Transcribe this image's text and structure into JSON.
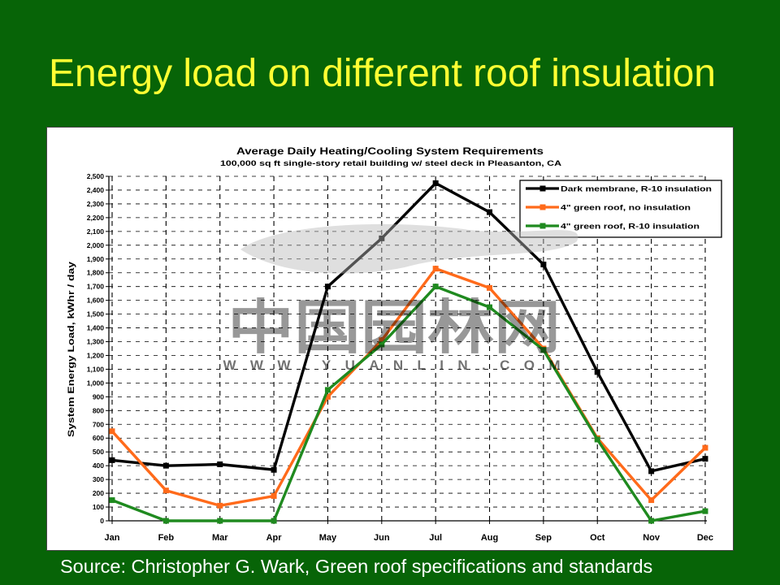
{
  "slide": {
    "title": "Energy load on different roof insulation",
    "source": "Source: Christopher G. Wark, Green roof specifications and standards",
    "background_color": "#076407",
    "title_color": "#ffff33",
    "source_color": "#ffffff"
  },
  "watermark": {
    "chinese": "中国园林网",
    "url": "WWW.YUANLIN.COM"
  },
  "chart_data": {
    "type": "line",
    "title": "Average Daily Heating/Cooling System Requirements",
    "subtitle": "100,000 sq ft single-story retail building w/ steel deck in Pleasanton, CA",
    "xlabel": "",
    "ylabel": "System Energy Load, kWhr / day",
    "categories": [
      "Jan",
      "Feb",
      "Mar",
      "Apr",
      "May",
      "Jun",
      "Jul",
      "Aug",
      "Sep",
      "Oct",
      "Nov",
      "Dec"
    ],
    "ylim": [
      0,
      2500
    ],
    "yticks": [
      "0",
      "100",
      "200",
      "300",
      "400",
      "500",
      "600",
      "700",
      "800",
      "900",
      "1,000",
      "1,100",
      "1,200",
      "1,300",
      "1,400",
      "1,500",
      "1,600",
      "1,700",
      "1,800",
      "1,900",
      "2,000",
      "2,100",
      "2,200",
      "2,300",
      "2,400",
      "2,500"
    ],
    "grid": true,
    "legend": "top-right",
    "series": [
      {
        "name": "Dark membrane, R-10 insulation",
        "color": "#000000",
        "values": [
          440,
          400,
          410,
          370,
          1700,
          2050,
          2450,
          2240,
          1860,
          1080,
          360,
          450
        ]
      },
      {
        "name": "4\" green roof, no insulation",
        "color": "#ff6a1a",
        "values": [
          650,
          220,
          110,
          180,
          900,
          1310,
          1830,
          1690,
          1250,
          600,
          150,
          530
        ]
      },
      {
        "name": "4\" green roof, R-10 insulation",
        "color": "#1f8a1f",
        "values": [
          150,
          0,
          0,
          0,
          950,
          1280,
          1700,
          1550,
          1240,
          590,
          0,
          70
        ]
      }
    ]
  }
}
